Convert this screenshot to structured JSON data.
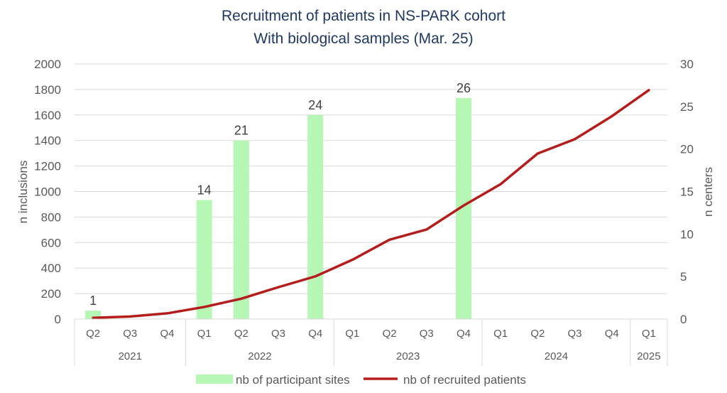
{
  "chart_data": {
    "type": "bar+line",
    "title": "Recruitment of patients in NS-PARK cohort",
    "subtitle": "With biological samples (Mar. 25)",
    "ylabel_left": "n inclusions",
    "ylabel_right": "n centers",
    "ylim_left": [
      0,
      2000
    ],
    "ylim_right": [
      0,
      30
    ],
    "yticks_left": [
      "0",
      "200",
      "400",
      "600",
      "800",
      "1000",
      "1200",
      "1400",
      "1600",
      "1800",
      "2000"
    ],
    "yticks_right": [
      "0",
      "5",
      "10",
      "15",
      "20",
      "25",
      "30"
    ],
    "grid": true,
    "categories": [
      "Q2",
      "Q3",
      "Q4",
      "Q1",
      "Q2",
      "Q3",
      "Q4",
      "Q1",
      "Q2",
      "Q3",
      "Q4",
      "Q1",
      "Q2",
      "Q3",
      "Q4",
      "Q1"
    ],
    "year_groups": [
      {
        "label": "2021",
        "span": 3
      },
      {
        "label": "2022",
        "span": 4
      },
      {
        "label": "2023",
        "span": 4
      },
      {
        "label": "2024",
        "span": 4
      },
      {
        "label": "2025",
        "span": 1
      }
    ],
    "series": [
      {
        "name": "nb of participant sites",
        "type": "bar",
        "axis": "right",
        "color": "#b6f7b6",
        "values": [
          1,
          null,
          null,
          14,
          21,
          null,
          24,
          null,
          null,
          null,
          26,
          null,
          null,
          null,
          null,
          null
        ],
        "data_labels": [
          "1",
          "",
          "",
          "14",
          "21",
          "",
          "24",
          "",
          "",
          "",
          "26",
          "",
          "",
          "",
          "",
          ""
        ]
      },
      {
        "name": "nb of recruited patients",
        "type": "line",
        "axis": "left",
        "color": "#b51c1c",
        "values": [
          10,
          20,
          45,
          95,
          160,
          250,
          335,
          465,
          622,
          702,
          890,
          1058,
          1298,
          1410,
          1590,
          1795
        ]
      }
    ],
    "legend": "bottom"
  }
}
